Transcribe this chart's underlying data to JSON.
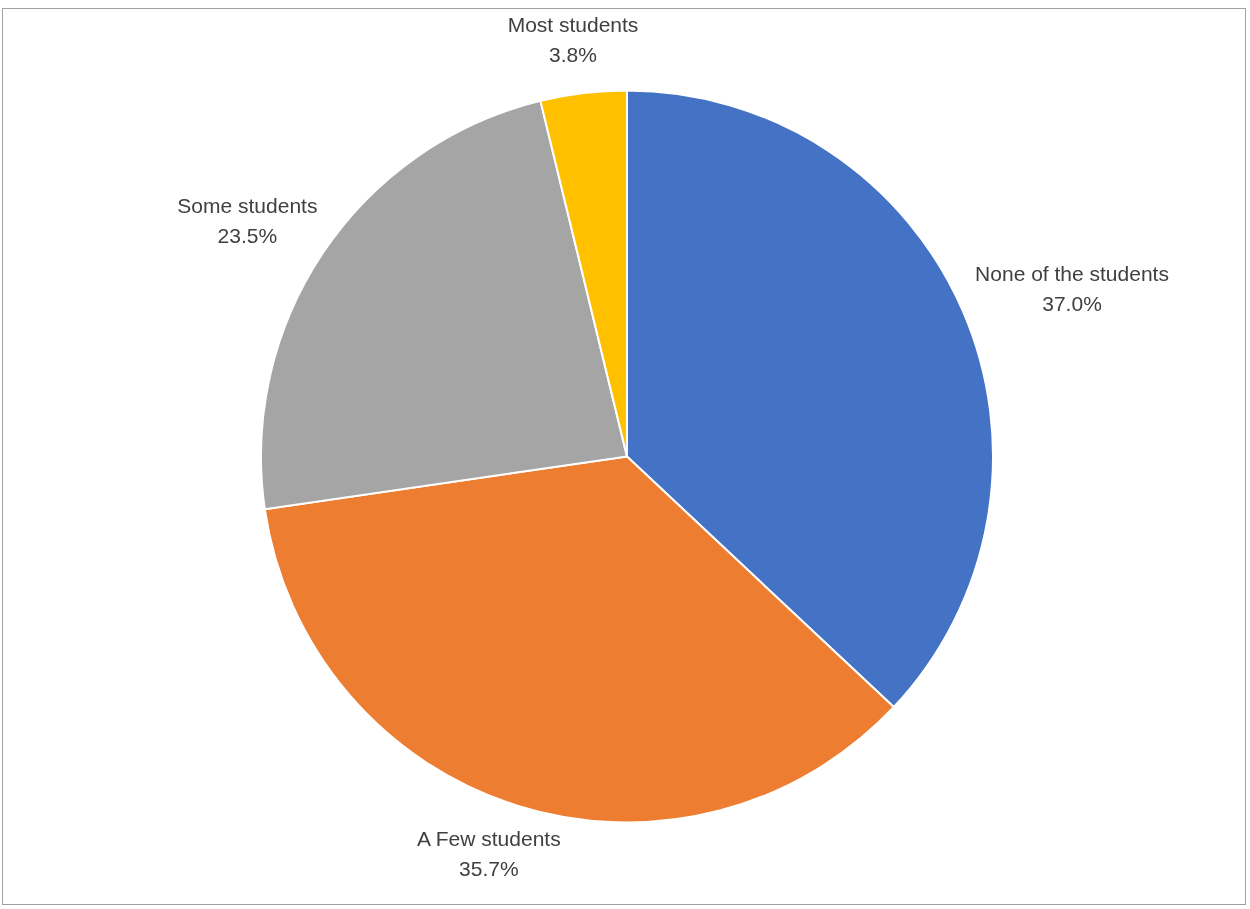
{
  "chart_data": {
    "type": "pie",
    "categories": [
      "None of the students",
      "A Few students",
      "Some students",
      "Most students"
    ],
    "values": [
      37.0,
      35.7,
      23.5,
      3.8
    ],
    "colors": [
      "#4472c4",
      "#ed7d31",
      "#a5a5a5",
      "#ffc000"
    ],
    "value_labels": [
      "37.0%",
      "35.7%",
      "23.5%",
      "3.8%"
    ],
    "legend": false
  }
}
